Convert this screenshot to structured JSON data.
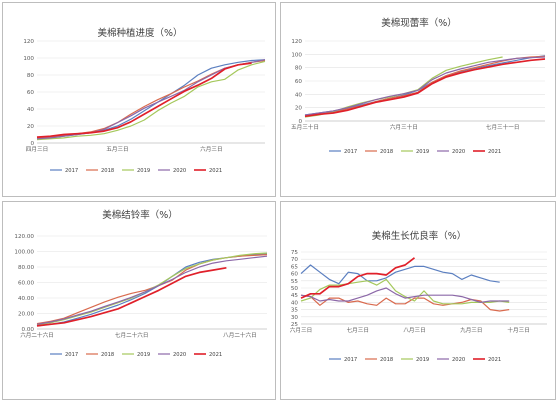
{
  "legend_years": [
    "2017",
    "2018",
    "2019",
    "2020",
    "2021"
  ],
  "colors": {
    "2017": "#5b7fc0",
    "2018": "#d96a4e",
    "2019": "#a5c85c",
    "2020": "#8c68a8",
    "2021": "#e0202a"
  },
  "chart_data": [
    {
      "type": "line",
      "title": "美棉种植进度（%）",
      "x": [
        0,
        1,
        2,
        3,
        4,
        5,
        6,
        7,
        8,
        9,
        10,
        11,
        12,
        13,
        14,
        15,
        16,
        17
      ],
      "xticks": [
        {
          "x": 0,
          "label": "四月三日"
        },
        {
          "x": 6,
          "label": "五月三日"
        },
        {
          "x": 13,
          "label": "六月三日"
        }
      ],
      "ylim": [
        0,
        120
      ],
      "yticks": [
        0,
        20,
        40,
        60,
        80,
        100,
        120
      ],
      "series": [
        {
          "name": "2017",
          "values": [
            5,
            6,
            8,
            10,
            12,
            15,
            20,
            28,
            38,
            48,
            58,
            68,
            80,
            88,
            92,
            95,
            97,
            98
          ]
        },
        {
          "name": "2018",
          "values": [
            6,
            7,
            9,
            11,
            13,
            17,
            24,
            34,
            43,
            51,
            58,
            66,
            73,
            81,
            88,
            92,
            95,
            97
          ]
        },
        {
          "name": "2019",
          "values": [
            4,
            5,
            6,
            8,
            9,
            11,
            15,
            20,
            27,
            38,
            47,
            55,
            66,
            72,
            75,
            86,
            92,
            96
          ]
        },
        {
          "name": "2020",
          "values": [
            5,
            6,
            8,
            10,
            12,
            16,
            24,
            32,
            41,
            48,
            55,
            62,
            72,
            80,
            88,
            92,
            95,
            98
          ]
        },
        {
          "name": "2021",
          "values": [
            7,
            8,
            10,
            11,
            12,
            14,
            18,
            25,
            34,
            43,
            52,
            61,
            68,
            76,
            87,
            92,
            94,
            null
          ]
        }
      ]
    },
    {
      "type": "line",
      "title": "美棉现蕾率（%）",
      "x": [
        0,
        1,
        2,
        3,
        4,
        5,
        6,
        7,
        8,
        9,
        10,
        11,
        12,
        13,
        14,
        15,
        16,
        17
      ],
      "xticks": [
        {
          "x": 0,
          "label": "五月三十日"
        },
        {
          "x": 7,
          "label": "六月三十日"
        },
        {
          "x": 14,
          "label": "七月三十一日"
        }
      ],
      "ylim": [
        0,
        120
      ],
      "yticks": [
        0,
        20,
        40,
        60,
        80,
        100,
        120
      ],
      "series": [
        {
          "name": "2017",
          "values": [
            9,
            12,
            15,
            19,
            24,
            29,
            34,
            39,
            46,
            58,
            68,
            74,
            79,
            83,
            87,
            91,
            95,
            98
          ]
        },
        {
          "name": "2018",
          "values": [
            7,
            10,
            13,
            18,
            23,
            29,
            34,
            38,
            43,
            58,
            68,
            75,
            80,
            85,
            90,
            94,
            96,
            97
          ]
        },
        {
          "name": "2019",
          "values": [
            6,
            9,
            14,
            21,
            27,
            32,
            36,
            41,
            47,
            64,
            76,
            82,
            87,
            92,
            96,
            null,
            null,
            null
          ]
        },
        {
          "name": "2020",
          "values": [
            9,
            12,
            15,
            20,
            26,
            32,
            37,
            41,
            46,
            62,
            72,
            78,
            83,
            88,
            91,
            94,
            95,
            96
          ]
        },
        {
          "name": "2021",
          "values": [
            7,
            10,
            12,
            16,
            22,
            28,
            32,
            36,
            42,
            56,
            66,
            72,
            77,
            81,
            85,
            88,
            91,
            93
          ]
        }
      ]
    },
    {
      "type": "line",
      "title": "美棉结铃率（%）",
      "x": [
        0,
        1,
        2,
        3,
        4,
        5,
        6,
        7,
        8,
        9,
        10,
        11,
        12,
        13,
        14,
        15,
        16,
        17
      ],
      "xticks": [
        {
          "x": 0,
          "label": "六月二十六日"
        },
        {
          "x": 7,
          "label": "七月二十六日"
        },
        {
          "x": 15,
          "label": "八月二十六日"
        }
      ],
      "ylim": [
        0,
        120
      ],
      "yticks": [
        "0.00",
        "20.00",
        "40.00",
        "60.00",
        "80.00",
        "100.00",
        "120.00"
      ],
      "series": [
        {
          "name": "2017",
          "values": [
            4,
            6,
            9,
            14,
            19,
            25,
            31,
            38,
            46,
            56,
            68,
            80,
            86,
            90,
            92,
            94,
            96,
            97
          ]
        },
        {
          "name": "2018",
          "values": [
            7,
            10,
            14,
            21,
            28,
            35,
            41,
            46,
            50,
            56,
            63,
            76,
            84,
            89,
            92,
            94,
            95,
            96
          ]
        },
        {
          "name": "2019",
          "values": [
            5,
            8,
            12,
            17,
            22,
            28,
            34,
            40,
            48,
            57,
            68,
            78,
            84,
            89,
            92,
            95,
            97,
            98
          ]
        },
        {
          "name": "2020",
          "values": [
            6,
            9,
            13,
            18,
            23,
            29,
            35,
            41,
            48,
            56,
            64,
            73,
            80,
            85,
            88,
            90,
            92,
            94
          ]
        },
        {
          "name": "2021",
          "values": [
            4,
            6,
            8,
            12,
            16,
            21,
            26,
            34,
            42,
            50,
            59,
            68,
            73,
            76,
            79,
            null,
            null,
            null
          ]
        }
      ]
    },
    {
      "type": "line",
      "title": "美棉生长优良率（%）",
      "x": [
        0,
        1,
        2,
        3,
        4,
        5,
        6,
        7,
        8,
        9,
        10,
        11,
        12,
        13,
        14,
        15,
        16,
        17,
        18,
        19,
        20,
        21,
        22,
        23,
        24,
        25,
        26
      ],
      "xticks": [
        {
          "x": 0,
          "label": "六月三日"
        },
        {
          "x": 6,
          "label": "七月三日"
        },
        {
          "x": 12,
          "label": "八月三日"
        },
        {
          "x": 18,
          "label": "九月三日"
        },
        {
          "x": 23,
          "label": "十月三日"
        }
      ],
      "ylim": [
        25,
        75
      ],
      "yticks": [
        25,
        30,
        35,
        40,
        45,
        50,
        55,
        60,
        65,
        70,
        75
      ],
      "series": [
        {
          "name": "2017",
          "values": [
            60,
            66,
            61,
            56,
            53,
            61,
            60,
            55,
            55,
            57,
            61,
            63,
            65,
            65,
            63,
            61,
            60,
            56,
            59,
            57,
            55,
            54,
            null,
            null,
            null,
            null,
            null
          ]
        },
        {
          "name": "2018",
          "values": [
            45,
            44,
            38,
            43,
            43,
            40,
            41,
            39,
            38,
            43,
            39,
            39,
            43,
            43,
            39,
            38,
            39,
            40,
            42,
            41,
            35,
            34,
            35,
            null,
            null,
            null,
            null
          ]
        },
        {
          "name": "2019",
          "values": [
            41,
            43,
            49,
            52,
            52,
            53,
            54,
            55,
            52,
            56,
            48,
            44,
            41,
            48,
            41,
            39,
            39,
            39,
            40,
            40,
            40,
            41,
            40,
            null,
            null,
            null,
            null
          ]
        },
        {
          "name": "2020",
          "values": [
            45,
            44,
            41,
            42,
            41,
            41,
            43,
            45,
            48,
            50,
            46,
            43,
            44,
            45,
            45,
            45,
            45,
            44,
            42,
            40,
            41,
            41,
            41,
            null,
            null,
            null,
            null
          ]
        },
        {
          "name": "2021",
          "values": [
            43,
            46,
            46,
            51,
            51,
            53,
            58,
            60,
            60,
            59,
            64,
            66,
            71,
            null,
            null,
            null,
            null,
            null,
            null,
            null,
            null,
            null,
            null,
            null,
            null,
            null,
            null
          ]
        }
      ]
    }
  ]
}
